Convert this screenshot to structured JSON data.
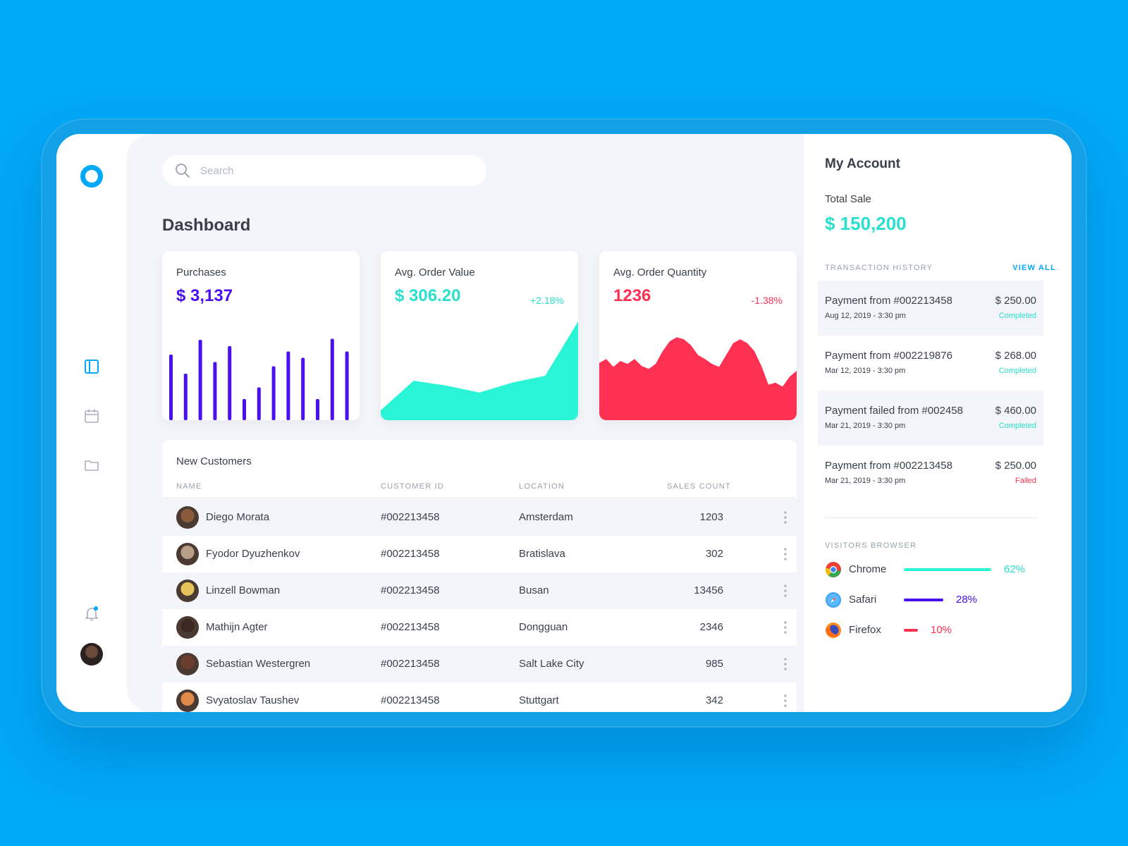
{
  "colors": {
    "brand": "#00a9f9",
    "purple": "#4a10f0",
    "teal": "#29f5d6",
    "teal_text": "#29e0cc",
    "red": "#ff3153"
  },
  "search": {
    "placeholder": "Search"
  },
  "page": {
    "title": "Dashboard"
  },
  "sidebar": {
    "items": [
      {
        "icon": "layout-icon",
        "active": true
      },
      {
        "icon": "calendar-icon",
        "active": false
      },
      {
        "icon": "folder-icon",
        "active": false
      }
    ],
    "bottom": [
      {
        "icon": "bell-icon"
      },
      {
        "icon": "user-avatar"
      }
    ]
  },
  "cards": {
    "purchases": {
      "label": "Purchases",
      "value": "$ 3,137"
    },
    "aov": {
      "label": "Avg. Order Value",
      "value": "$ 306.20",
      "delta": "+2.18%"
    },
    "aoq": {
      "label": "Avg. Order Quantity",
      "value": "1236",
      "delta": "-1.38%"
    }
  },
  "customers": {
    "title": "New Customers",
    "columns": [
      "NAME",
      "CUSTOMER ID",
      "LOCATION",
      "SALES COUNT"
    ],
    "rows": [
      {
        "name": "Diego Morata",
        "id": "#002213458",
        "location": "Amsterdam",
        "sales": "1203",
        "avatar": "#8a5a3c"
      },
      {
        "name": "Fyodor Dyuzhenkov",
        "id": "#002213458",
        "location": "Bratislava",
        "sales": "302",
        "avatar": "#b79c86"
      },
      {
        "name": "Linzell Bowman",
        "id": "#002213458",
        "location": "Busan",
        "sales": "13456",
        "avatar": "#e6c25a"
      },
      {
        "name": "Mathijn Agter",
        "id": "#002213458",
        "location": "Dongguan",
        "sales": "2346",
        "avatar": "#3c2a22"
      },
      {
        "name": "Sebastian Westergren",
        "id": "#002213458",
        "location": "Salt Lake City",
        "sales": "985",
        "avatar": "#6b3d2c"
      },
      {
        "name": "Svyatoslav Taushev",
        "id": "#002213458",
        "location": "Stuttgart",
        "sales": "342",
        "avatar": "#e08a4a"
      }
    ]
  },
  "account": {
    "title": "My Account",
    "total_label": "Total Sale",
    "total_value": "$ 150,200",
    "history_label": "TRANSACTION HISTORY",
    "view_all": "VIEW ALL",
    "transactions": [
      {
        "title": "Payment from #002213458",
        "date": "Aug 12, 2019 - 3:30 pm",
        "amount": "$ 250.00",
        "status": "Completed",
        "status_color": "#29e0cc"
      },
      {
        "title": "Payment from #002219876",
        "date": "Mar 12, 2019 - 3:30 pm",
        "amount": "$ 268.00",
        "status": "Completed",
        "status_color": "#29e0cc"
      },
      {
        "title": "Payment failed from #002458",
        "date": "Mar 21, 2019 - 3:30 pm",
        "amount": "$ 460.00",
        "status": "Completed",
        "status_color": "#29e0cc"
      },
      {
        "title": "Payment from #002213458",
        "date": "Mar 21, 2019 - 3:30 pm",
        "amount": "$ 250.00",
        "status": "Failed",
        "status_color": "#ff3153"
      }
    ],
    "browsers_label": "VISITORS BROWSER",
    "browsers": [
      {
        "name": "Chrome",
        "pct": "62%",
        "share": 0.62,
        "color": "#29f5d6",
        "text_color": "#29e0cc",
        "icon": "chrome-icon"
      },
      {
        "name": "Safari",
        "pct": "28%",
        "share": 0.28,
        "color": "#4a10f0",
        "text_color": "#4a10f0",
        "icon": "safari-icon"
      },
      {
        "name": "Firefox",
        "pct": "10%",
        "share": 0.1,
        "color": "#ff3153",
        "text_color": "#ff3153",
        "icon": "firefox-icon"
      }
    ]
  },
  "chart_data": [
    {
      "type": "bar",
      "title": "Purchases",
      "values": [
        62,
        44,
        76,
        55,
        70,
        20,
        31,
        51,
        65,
        59,
        20,
        77,
        65
      ],
      "color": "#4a10f0"
    },
    {
      "type": "area",
      "title": "Avg. Order Value",
      "values": [
        10,
        40,
        35,
        28,
        38,
        45,
        100
      ],
      "color": "#29f5d6"
    },
    {
      "type": "area",
      "title": "Avg. Order Quantity",
      "values": [
        58,
        62,
        54,
        60,
        57,
        62,
        55,
        52,
        57,
        70,
        80,
        84,
        82,
        76,
        66,
        62,
        57,
        54,
        66,
        78,
        82,
        78,
        70,
        55,
        36,
        38,
        34,
        44,
        50
      ],
      "color": "#ff3153"
    }
  ]
}
